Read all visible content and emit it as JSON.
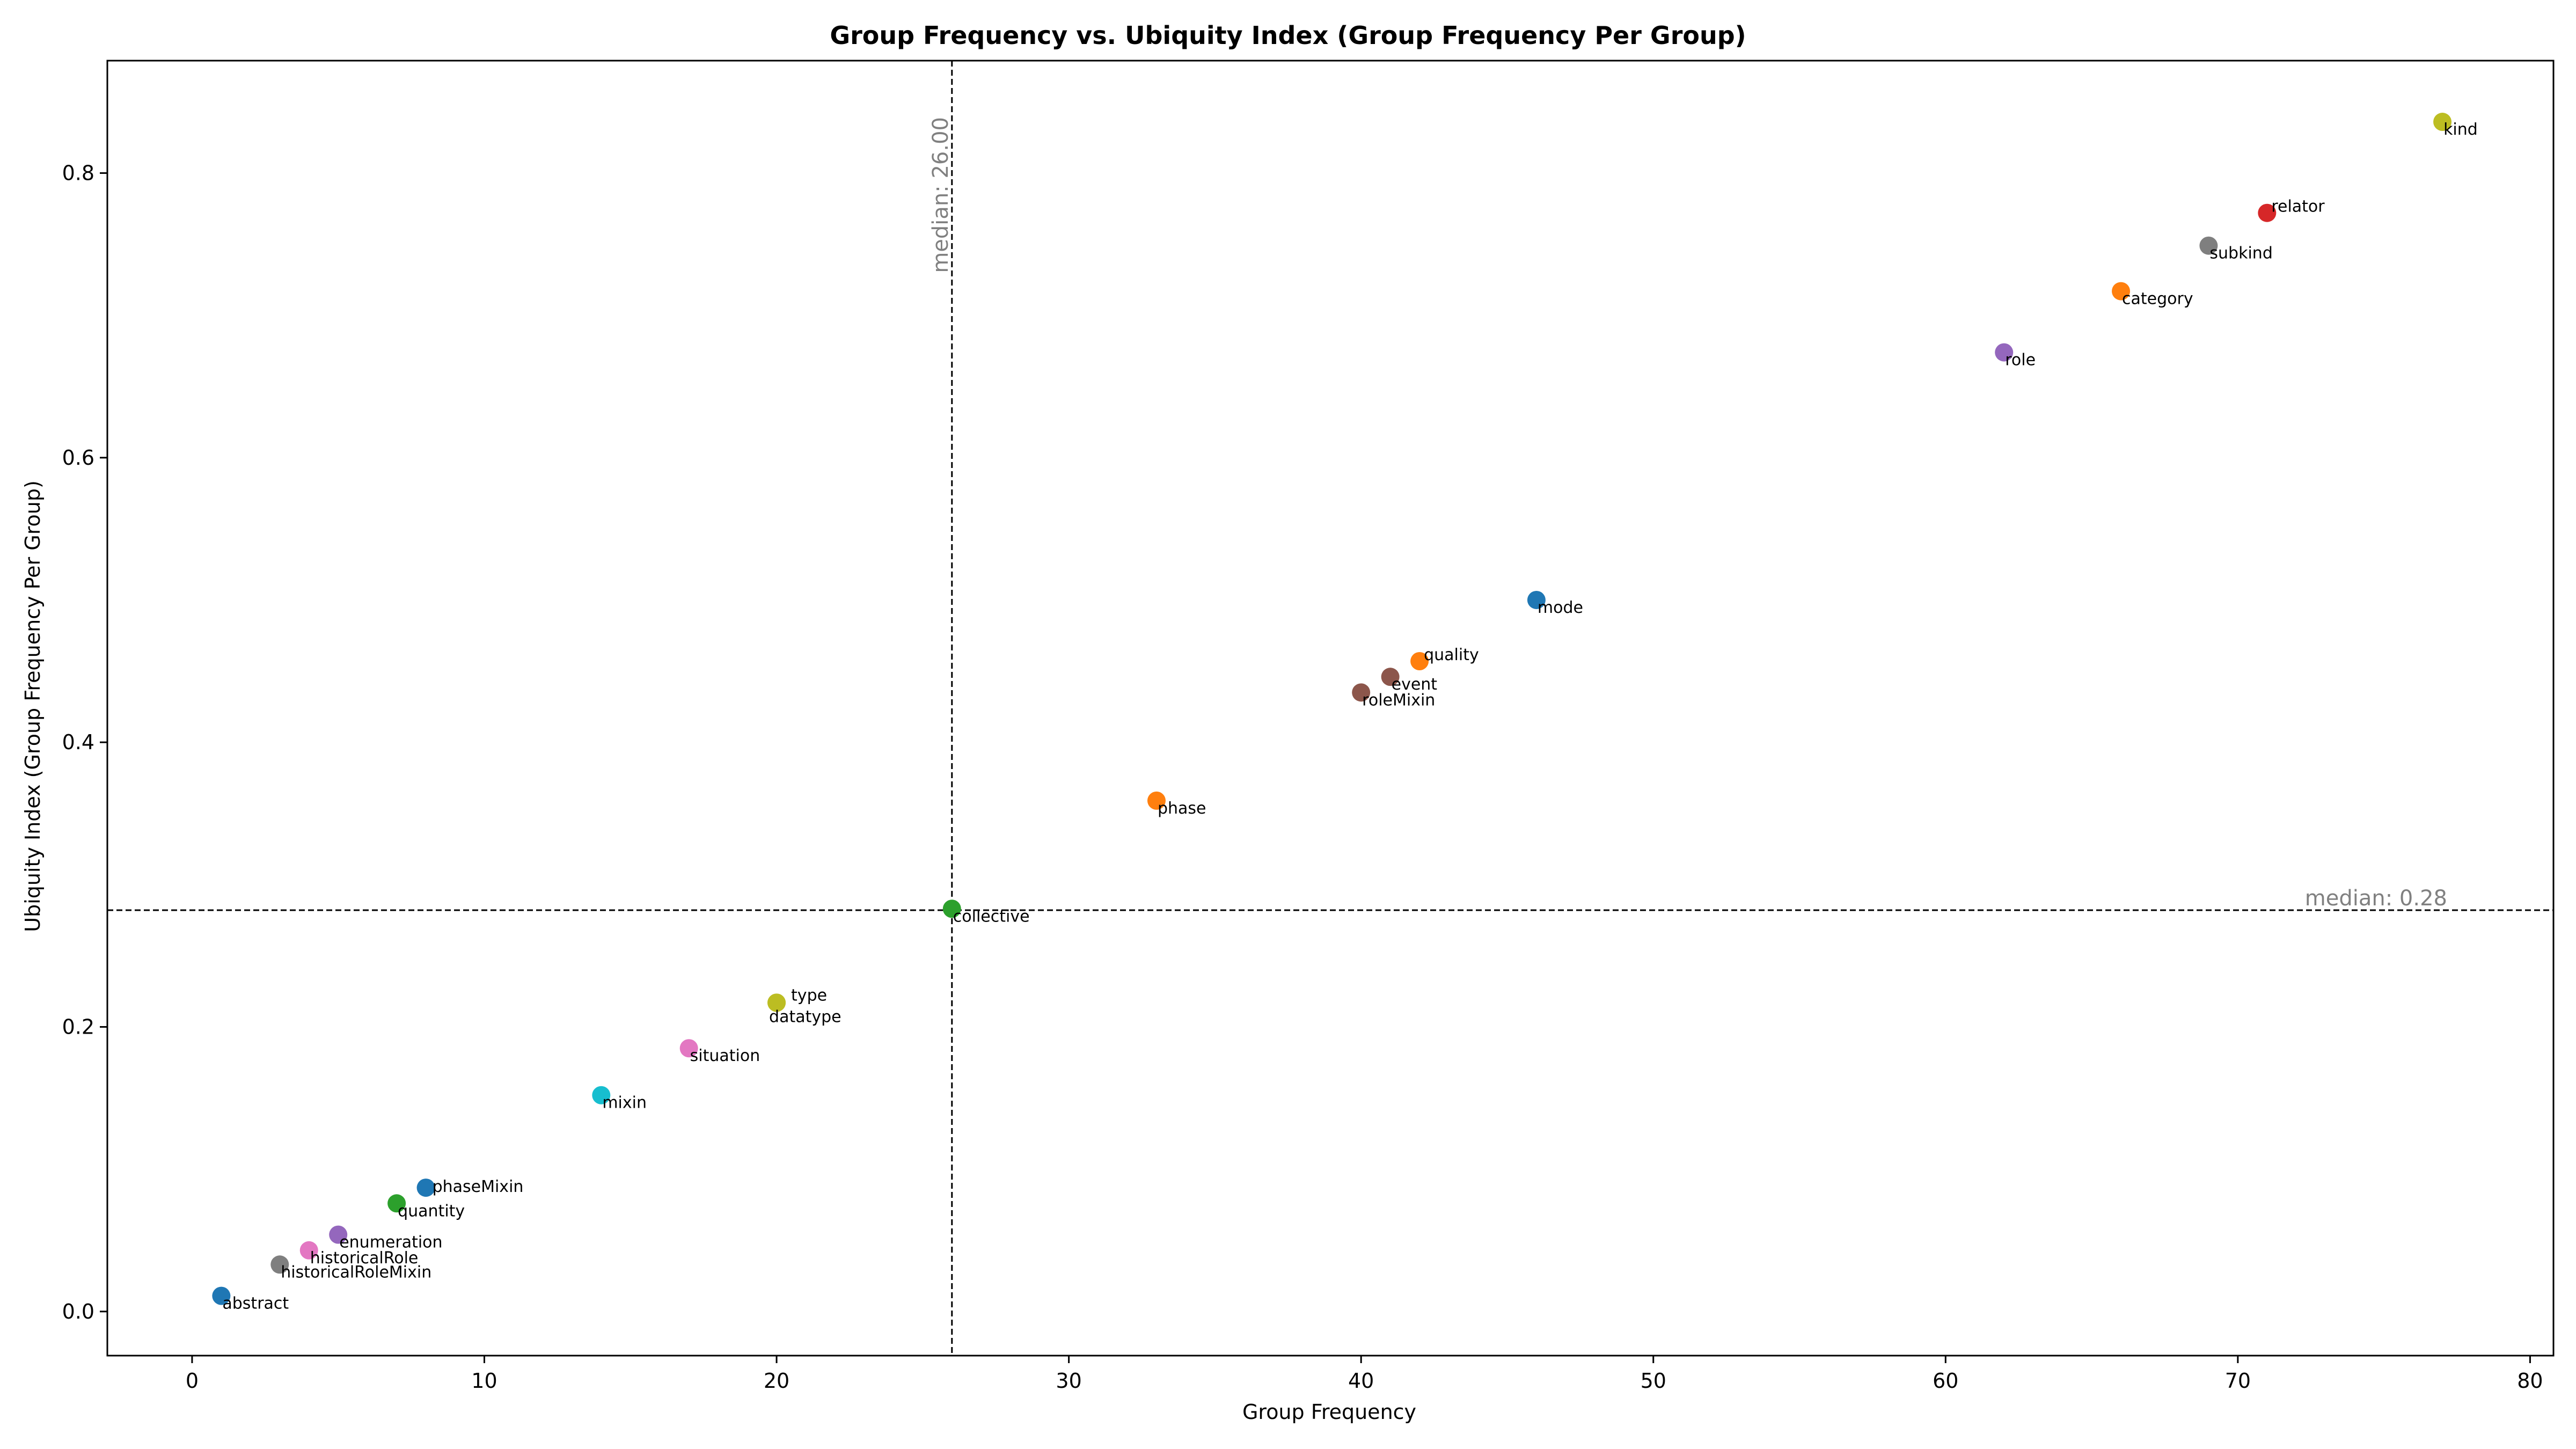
{
  "chart_data": {
    "type": "scatter",
    "title": "Group Frequency vs. Ubiquity Index (Group Frequency Per Group)",
    "xlabel": "Group Frequency",
    "ylabel": "Ubiquity Index (Group Frequency Per Group)",
    "xlim": [
      -2.9,
      80.8
    ],
    "ylim": [
      -0.031,
      0.879
    ],
    "xticks": [
      0,
      10,
      20,
      30,
      40,
      50,
      60,
      70,
      80
    ],
    "yticks": [
      0.0,
      0.2,
      0.4,
      0.6,
      0.8
    ],
    "xtick_labels": [
      "0",
      "10",
      "20",
      "30",
      "40",
      "50",
      "60",
      "70",
      "80"
    ],
    "ytick_labels": [
      "0.0",
      "0.2",
      "0.4",
      "0.6",
      "0.8"
    ],
    "grid": false,
    "median_x": {
      "value": 26,
      "label": "median: 26.00"
    },
    "median_y": {
      "value": 0.282,
      "label": "median: 0.28"
    },
    "points": [
      {
        "label": "kind",
        "x": 77,
        "y": 0.836,
        "color": "#bcbd22",
        "label_anchor": "below-right"
      },
      {
        "label": "relator",
        "x": 71,
        "y": 0.772,
        "color": "#d62728",
        "label_anchor": "above-right"
      },
      {
        "label": "subkind",
        "x": 69,
        "y": 0.749,
        "color": "#7f7f7f",
        "label_anchor": "below-right"
      },
      {
        "label": "category",
        "x": 66,
        "y": 0.717,
        "color": "#ff7f0e",
        "label_anchor": "below-right"
      },
      {
        "label": "role",
        "x": 62,
        "y": 0.674,
        "color": "#9467bd",
        "label_anchor": "below-right"
      },
      {
        "label": "mode",
        "x": 46,
        "y": 0.5,
        "color": "#1f77b4",
        "label_anchor": "below-right"
      },
      {
        "label": "quality",
        "x": 42,
        "y": 0.457,
        "color": "#ff7f0e",
        "label_anchor": "above-right"
      },
      {
        "label": "event",
        "x": 41,
        "y": 0.446,
        "color": "#8c564b",
        "label_anchor": "below-right"
      },
      {
        "label": "roleMixin",
        "x": 40,
        "y": 0.435,
        "color": "#8c564b",
        "label_anchor": "below-right"
      },
      {
        "label": "phase",
        "x": 33,
        "y": 0.359,
        "color": "#ff7f0e",
        "label_anchor": "below-right"
      },
      {
        "label": "collective",
        "x": 26,
        "y": 0.283,
        "color": "#2ca02c",
        "label_anchor": "below-right"
      },
      {
        "label": "type",
        "x": 20,
        "y": 0.217,
        "color": "#bcbd22",
        "label_anchor": "above-right-far"
      },
      {
        "label": "datatype",
        "x": 20,
        "y": 0.217,
        "color": "#bcbd22",
        "label_anchor": "below-right-near"
      },
      {
        "label": "situation",
        "x": 17,
        "y": 0.185,
        "color": "#e377c2",
        "label_anchor": "below-right"
      },
      {
        "label": "mixin",
        "x": 14,
        "y": 0.152,
        "color": "#17becf",
        "label_anchor": "below-right"
      },
      {
        "label": "phaseMixin",
        "x": 8,
        "y": 0.087,
        "color": "#1f77b4",
        "label_anchor": "right"
      },
      {
        "label": "quantity",
        "x": 7,
        "y": 0.076,
        "color": "#2ca02c",
        "label_anchor": "below-right"
      },
      {
        "label": "enumeration",
        "x": 5,
        "y": 0.054,
        "color": "#9467bd",
        "label_anchor": "below-right"
      },
      {
        "label": "historicalRole",
        "x": 4,
        "y": 0.043,
        "color": "#e377c2",
        "label_anchor": "below-right"
      },
      {
        "label": "historicalRoleMixin",
        "x": 3,
        "y": 0.033,
        "color": "#7f7f7f",
        "label_anchor": "below-right"
      },
      {
        "label": "abstract",
        "x": 1,
        "y": 0.011,
        "color": "#1f77b4",
        "label_anchor": "below-right"
      }
    ]
  }
}
